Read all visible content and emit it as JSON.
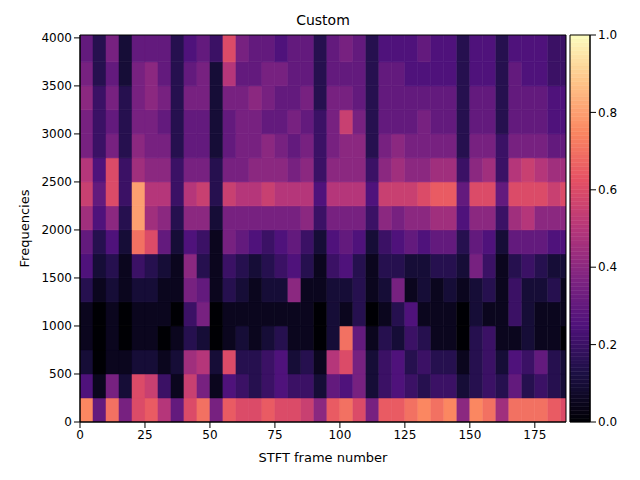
{
  "chart_data": {
    "type": "heatmap",
    "title": "Custom",
    "x_label": "STFT frame number",
    "y_label": "Frequencies",
    "xlim": [
      0,
      187
    ],
    "xticks": [
      0,
      25,
      50,
      75,
      100,
      125,
      150,
      175
    ],
    "ylim": [
      0,
      4030
    ],
    "yticks": [
      0,
      500,
      1000,
      1500,
      2000,
      2500,
      3000,
      3500,
      4000
    ],
    "x_edges": [
      0,
      5,
      10,
      15,
      20,
      25,
      30,
      35,
      40,
      45,
      50,
      55,
      60,
      65,
      70,
      75,
      80,
      85,
      90,
      95,
      100,
      105,
      110,
      115,
      120,
      125,
      130,
      135,
      140,
      145,
      150,
      155,
      160,
      165,
      170,
      175,
      180,
      185,
      187
    ],
    "y_edges": [
      0,
      250,
      500,
      750,
      1000,
      1250,
      1500,
      1750,
      2000,
      2250,
      2500,
      2750,
      3000,
      3250,
      3500,
      3750,
      4030
    ],
    "cells": [
      [
        0.75,
        0.3,
        0.7,
        0.35,
        0.6,
        0.65,
        0.5,
        0.3,
        0.6,
        0.7,
        0.35,
        0.65,
        0.6,
        0.6,
        0.65,
        0.6,
        0.6,
        0.55,
        0.4,
        0.65,
        0.7,
        0.6,
        0.35,
        0.65,
        0.65,
        0.7,
        0.75,
        0.7,
        0.75,
        0.4,
        0.75,
        0.7,
        0.45,
        0.7,
        0.7,
        0.7,
        0.65,
        0.6
      ],
      [
        0.25,
        0.05,
        0.35,
        0.1,
        0.6,
        0.55,
        0.2,
        0.05,
        0.55,
        0.35,
        0.05,
        0.25,
        0.2,
        0.15,
        0.2,
        0.25,
        0.2,
        0.2,
        0.1,
        0.3,
        0.25,
        0.35,
        0.1,
        0.2,
        0.25,
        0.2,
        0.15,
        0.2,
        0.2,
        0.1,
        0.15,
        0.2,
        0.15,
        0.3,
        0.15,
        0.2,
        0.15,
        0.1
      ],
      [
        0.1,
        0.0,
        0.05,
        0.05,
        0.1,
        0.1,
        0.05,
        0.1,
        0.45,
        0.5,
        0.1,
        0.6,
        0.15,
        0.15,
        0.2,
        0.25,
        0.1,
        0.15,
        0.05,
        0.5,
        0.6,
        0.35,
        0.1,
        0.2,
        0.25,
        0.15,
        0.2,
        0.15,
        0.15,
        0.05,
        0.15,
        0.2,
        0.1,
        0.25,
        0.2,
        0.3,
        0.15,
        0.1
      ],
      [
        0.05,
        0.0,
        0.05,
        0.0,
        0.05,
        0.05,
        0.0,
        0.05,
        0.15,
        0.1,
        0.0,
        0.05,
        0.1,
        0.05,
        0.1,
        0.15,
        0.05,
        0.05,
        0.0,
        0.1,
        0.7,
        0.3,
        0.05,
        0.15,
        0.1,
        0.2,
        0.15,
        0.05,
        0.05,
        0.0,
        0.15,
        0.2,
        0.05,
        0.05,
        0.1,
        0.05,
        0.05,
        0.0
      ],
      [
        0.05,
        0.0,
        0.05,
        0.0,
        0.05,
        0.05,
        0.05,
        0.0,
        0.2,
        0.35,
        0.0,
        0.05,
        0.05,
        0.05,
        0.05,
        0.05,
        0.05,
        0.05,
        0.0,
        0.1,
        0.05,
        0.15,
        0.0,
        0.05,
        0.15,
        0.25,
        0.05,
        0.05,
        0.05,
        0.0,
        0.1,
        0.05,
        0.05,
        0.2,
        0.1,
        0.05,
        0.05,
        0.05
      ],
      [
        0.15,
        0.05,
        0.1,
        0.05,
        0.1,
        0.1,
        0.05,
        0.05,
        0.35,
        0.3,
        0.05,
        0.15,
        0.1,
        0.05,
        0.1,
        0.1,
        0.4,
        0.05,
        0.05,
        0.1,
        0.1,
        0.15,
        0.05,
        0.1,
        0.35,
        0.05,
        0.1,
        0.05,
        0.1,
        0.05,
        0.1,
        0.15,
        0.05,
        0.2,
        0.1,
        0.1,
        0.15,
        0.05
      ],
      [
        0.25,
        0.1,
        0.15,
        0.05,
        0.2,
        0.15,
        0.1,
        0.05,
        0.4,
        0.15,
        0.05,
        0.2,
        0.15,
        0.1,
        0.15,
        0.2,
        0.25,
        0.15,
        0.05,
        0.2,
        0.25,
        0.15,
        0.05,
        0.15,
        0.15,
        0.1,
        0.1,
        0.15,
        0.15,
        0.1,
        0.35,
        0.2,
        0.05,
        0.15,
        0.2,
        0.15,
        0.1,
        0.1
      ],
      [
        0.3,
        0.15,
        0.25,
        0.1,
        0.7,
        0.6,
        0.3,
        0.1,
        0.25,
        0.2,
        0.05,
        0.35,
        0.3,
        0.25,
        0.2,
        0.25,
        0.3,
        0.2,
        0.1,
        0.25,
        0.3,
        0.25,
        0.1,
        0.2,
        0.25,
        0.3,
        0.25,
        0.3,
        0.3,
        0.15,
        0.3,
        0.25,
        0.1,
        0.3,
        0.3,
        0.3,
        0.25,
        0.25
      ],
      [
        0.45,
        0.25,
        0.4,
        0.15,
        0.8,
        0.45,
        0.4,
        0.15,
        0.4,
        0.4,
        0.1,
        0.35,
        0.35,
        0.35,
        0.35,
        0.35,
        0.35,
        0.4,
        0.2,
        0.35,
        0.35,
        0.35,
        0.2,
        0.4,
        0.35,
        0.4,
        0.4,
        0.45,
        0.45,
        0.25,
        0.4,
        0.4,
        0.2,
        0.45,
        0.5,
        0.4,
        0.4,
        0.4
      ],
      [
        0.55,
        0.3,
        0.6,
        0.2,
        0.8,
        0.5,
        0.5,
        0.2,
        0.5,
        0.55,
        0.15,
        0.55,
        0.5,
        0.5,
        0.55,
        0.5,
        0.5,
        0.5,
        0.25,
        0.5,
        0.5,
        0.5,
        0.25,
        0.55,
        0.55,
        0.55,
        0.6,
        0.65,
        0.65,
        0.3,
        0.6,
        0.6,
        0.3,
        0.6,
        0.6,
        0.6,
        0.55,
        0.6
      ],
      [
        0.5,
        0.25,
        0.6,
        0.2,
        0.45,
        0.4,
        0.4,
        0.2,
        0.35,
        0.35,
        0.15,
        0.35,
        0.35,
        0.4,
        0.4,
        0.4,
        0.35,
        0.4,
        0.2,
        0.4,
        0.4,
        0.4,
        0.2,
        0.4,
        0.45,
        0.4,
        0.4,
        0.45,
        0.45,
        0.2,
        0.4,
        0.45,
        0.2,
        0.5,
        0.55,
        0.5,
        0.45,
        0.45
      ],
      [
        0.35,
        0.2,
        0.35,
        0.15,
        0.4,
        0.35,
        0.35,
        0.15,
        0.3,
        0.3,
        0.1,
        0.3,
        0.35,
        0.35,
        0.4,
        0.35,
        0.3,
        0.35,
        0.2,
        0.35,
        0.4,
        0.4,
        0.15,
        0.35,
        0.4,
        0.35,
        0.35,
        0.35,
        0.35,
        0.15,
        0.35,
        0.35,
        0.2,
        0.35,
        0.35,
        0.35,
        0.3,
        0.3
      ],
      [
        0.35,
        0.2,
        0.3,
        0.15,
        0.35,
        0.35,
        0.3,
        0.15,
        0.3,
        0.3,
        0.1,
        0.3,
        0.35,
        0.35,
        0.3,
        0.3,
        0.35,
        0.3,
        0.2,
        0.35,
        0.55,
        0.35,
        0.15,
        0.3,
        0.3,
        0.3,
        0.35,
        0.3,
        0.3,
        0.15,
        0.3,
        0.3,
        0.15,
        0.3,
        0.3,
        0.3,
        0.25,
        0.25
      ],
      [
        0.4,
        0.2,
        0.35,
        0.15,
        0.35,
        0.4,
        0.35,
        0.15,
        0.35,
        0.35,
        0.1,
        0.35,
        0.35,
        0.4,
        0.35,
        0.3,
        0.3,
        0.35,
        0.15,
        0.35,
        0.35,
        0.3,
        0.15,
        0.3,
        0.3,
        0.3,
        0.3,
        0.3,
        0.3,
        0.15,
        0.3,
        0.3,
        0.15,
        0.3,
        0.3,
        0.3,
        0.25,
        0.25
      ],
      [
        0.35,
        0.15,
        0.3,
        0.1,
        0.35,
        0.4,
        0.3,
        0.15,
        0.3,
        0.35,
        0.1,
        0.5,
        0.3,
        0.3,
        0.35,
        0.35,
        0.3,
        0.3,
        0.15,
        0.3,
        0.3,
        0.3,
        0.15,
        0.3,
        0.3,
        0.25,
        0.25,
        0.25,
        0.25,
        0.15,
        0.25,
        0.25,
        0.15,
        0.3,
        0.25,
        0.25,
        0.2,
        0.2
      ],
      [
        0.3,
        0.15,
        0.35,
        0.1,
        0.3,
        0.3,
        0.3,
        0.15,
        0.25,
        0.3,
        0.2,
        0.6,
        0.35,
        0.3,
        0.3,
        0.25,
        0.3,
        0.3,
        0.15,
        0.3,
        0.35,
        0.3,
        0.15,
        0.25,
        0.25,
        0.25,
        0.3,
        0.25,
        0.25,
        0.15,
        0.25,
        0.25,
        0.15,
        0.25,
        0.25,
        0.25,
        0.2,
        0.2
      ]
    ],
    "colorbar_range": [
      0,
      1
    ],
    "colorbar_ticks": [
      {
        "value": 0,
        "label": "0.0"
      },
      {
        "value": 0.2,
        "label": "0.2"
      },
      {
        "value": 0.4,
        "label": "0.4"
      },
      {
        "value": 0.6,
        "label": "0.6"
      },
      {
        "value": 0.8,
        "label": "0.8"
      },
      {
        "value": 1,
        "label": "1.0"
      }
    ]
  }
}
